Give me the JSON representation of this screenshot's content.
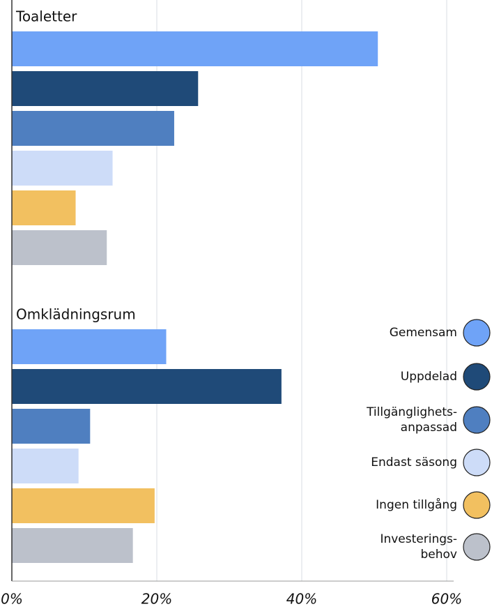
{
  "chart_data": {
    "type": "grouped-hbar",
    "categories": [
      "Toaletter",
      "Omklädningsrum"
    ],
    "series": [
      {
        "name": "Gemensam",
        "color": "#6fa3f7",
        "values": [
          50.5,
          21.3
        ]
      },
      {
        "name": "Uppdelad",
        "color": "#1f4a78",
        "values": [
          25.7,
          37.2
        ]
      },
      {
        "name": "Tillgänglighets-\nanpassad",
        "color": "#4f7fc0",
        "values": [
          22.4,
          10.8
        ]
      },
      {
        "name": "Endast säsong",
        "color": "#cddcf8",
        "values": [
          13.9,
          9.2
        ]
      },
      {
        "name": "Ingen tillgång",
        "color": "#f2c060",
        "values": [
          8.8,
          19.7
        ]
      },
      {
        "name": "Investerings-\nbehov",
        "color": "#bcc1cb",
        "values": [
          13.1,
          16.7
        ]
      }
    ],
    "xlim": [
      0,
      60
    ],
    "xticks": [
      {
        "value": 0,
        "label": "0%"
      },
      {
        "value": 20,
        "label": "20%"
      },
      {
        "value": 40,
        "label": "40%"
      },
      {
        "value": 60,
        "label": "60%"
      }
    ],
    "grid": true,
    "legend": "right"
  }
}
